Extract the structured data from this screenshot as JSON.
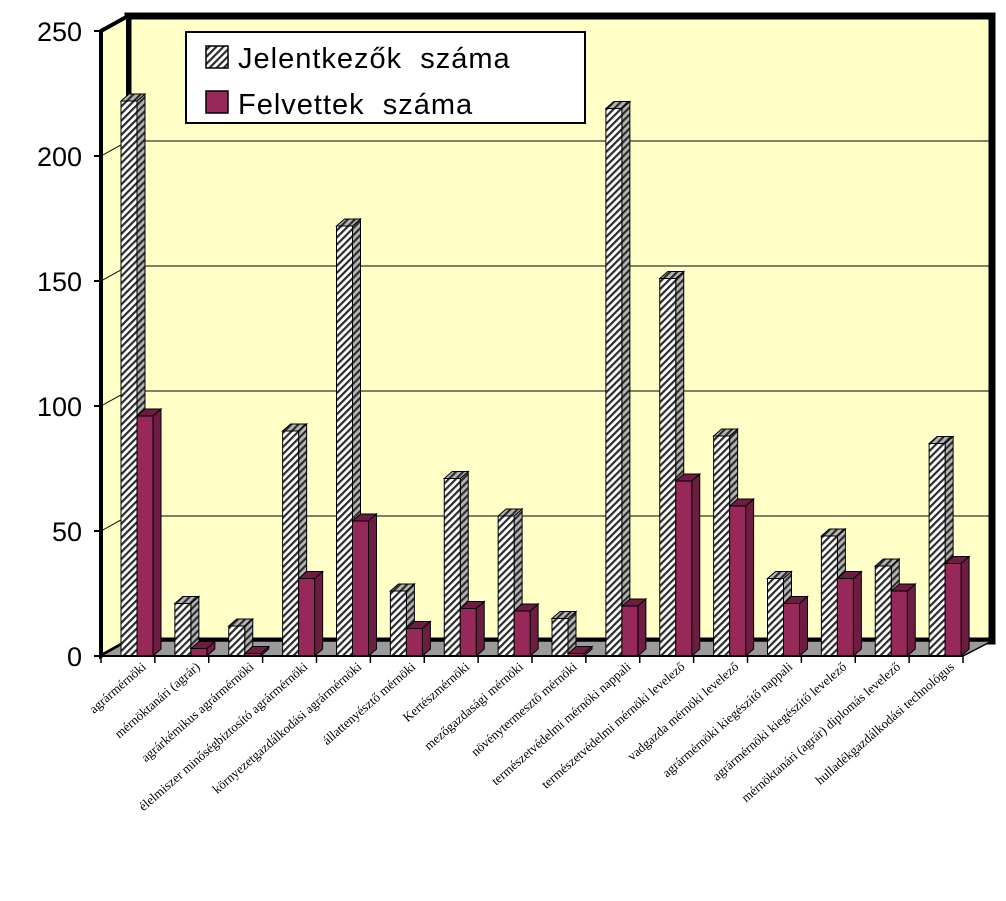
{
  "chart_data": {
    "type": "bar",
    "categories": [
      "agrármérnöki",
      "mérnöktanári (agrár)",
      "agrárkémikus agrármérnöki",
      "élelmiszer minőségbiztosító agrármérnöki",
      "környezetgazdálkodási agrármérnöki",
      "állattenyésztő mérnöki",
      "Kertészmérnöki",
      "mezőgazdasági mérnöki",
      "növénytermesztő mérnöki",
      "természetvédelmi mérnöki nappali",
      "természetvédelmi mérnöki levelező",
      "vadgazda mérnöki levelező",
      "agrármérnöki kiegészítő nappali",
      "agrármérnöki kiegészítő levelező",
      "mérnöktanári (agrár) diplomás levelező",
      "hulladékgazdálkodási technológus"
    ],
    "series": [
      {
        "name": "Jelentkezők  száma",
        "values": [
          222,
          21,
          12,
          90,
          172,
          26,
          71,
          56,
          15,
          219,
          151,
          88,
          31,
          48,
          36,
          85
        ]
      },
      {
        "name": "Felvettek  száma",
        "values": [
          96,
          3,
          1,
          31,
          54,
          11,
          19,
          18,
          1,
          20,
          70,
          60,
          21,
          31,
          26,
          37
        ]
      }
    ],
    "ylim": [
      0,
      250
    ],
    "yticks": [
      "0",
      "50",
      "100",
      "150",
      "200",
      "250"
    ],
    "grid": true,
    "legend_position": "top-left",
    "title": "",
    "xlabel": "",
    "ylabel": ""
  },
  "colors": {
    "wall": "#ffffc8",
    "floor": "#9a9a9a",
    "felvettek_front": "#96295a",
    "felvettek_side": "#6e1d42",
    "hatch_fg": "#2b2b2b",
    "hatch_bg": "#ffffff"
  }
}
